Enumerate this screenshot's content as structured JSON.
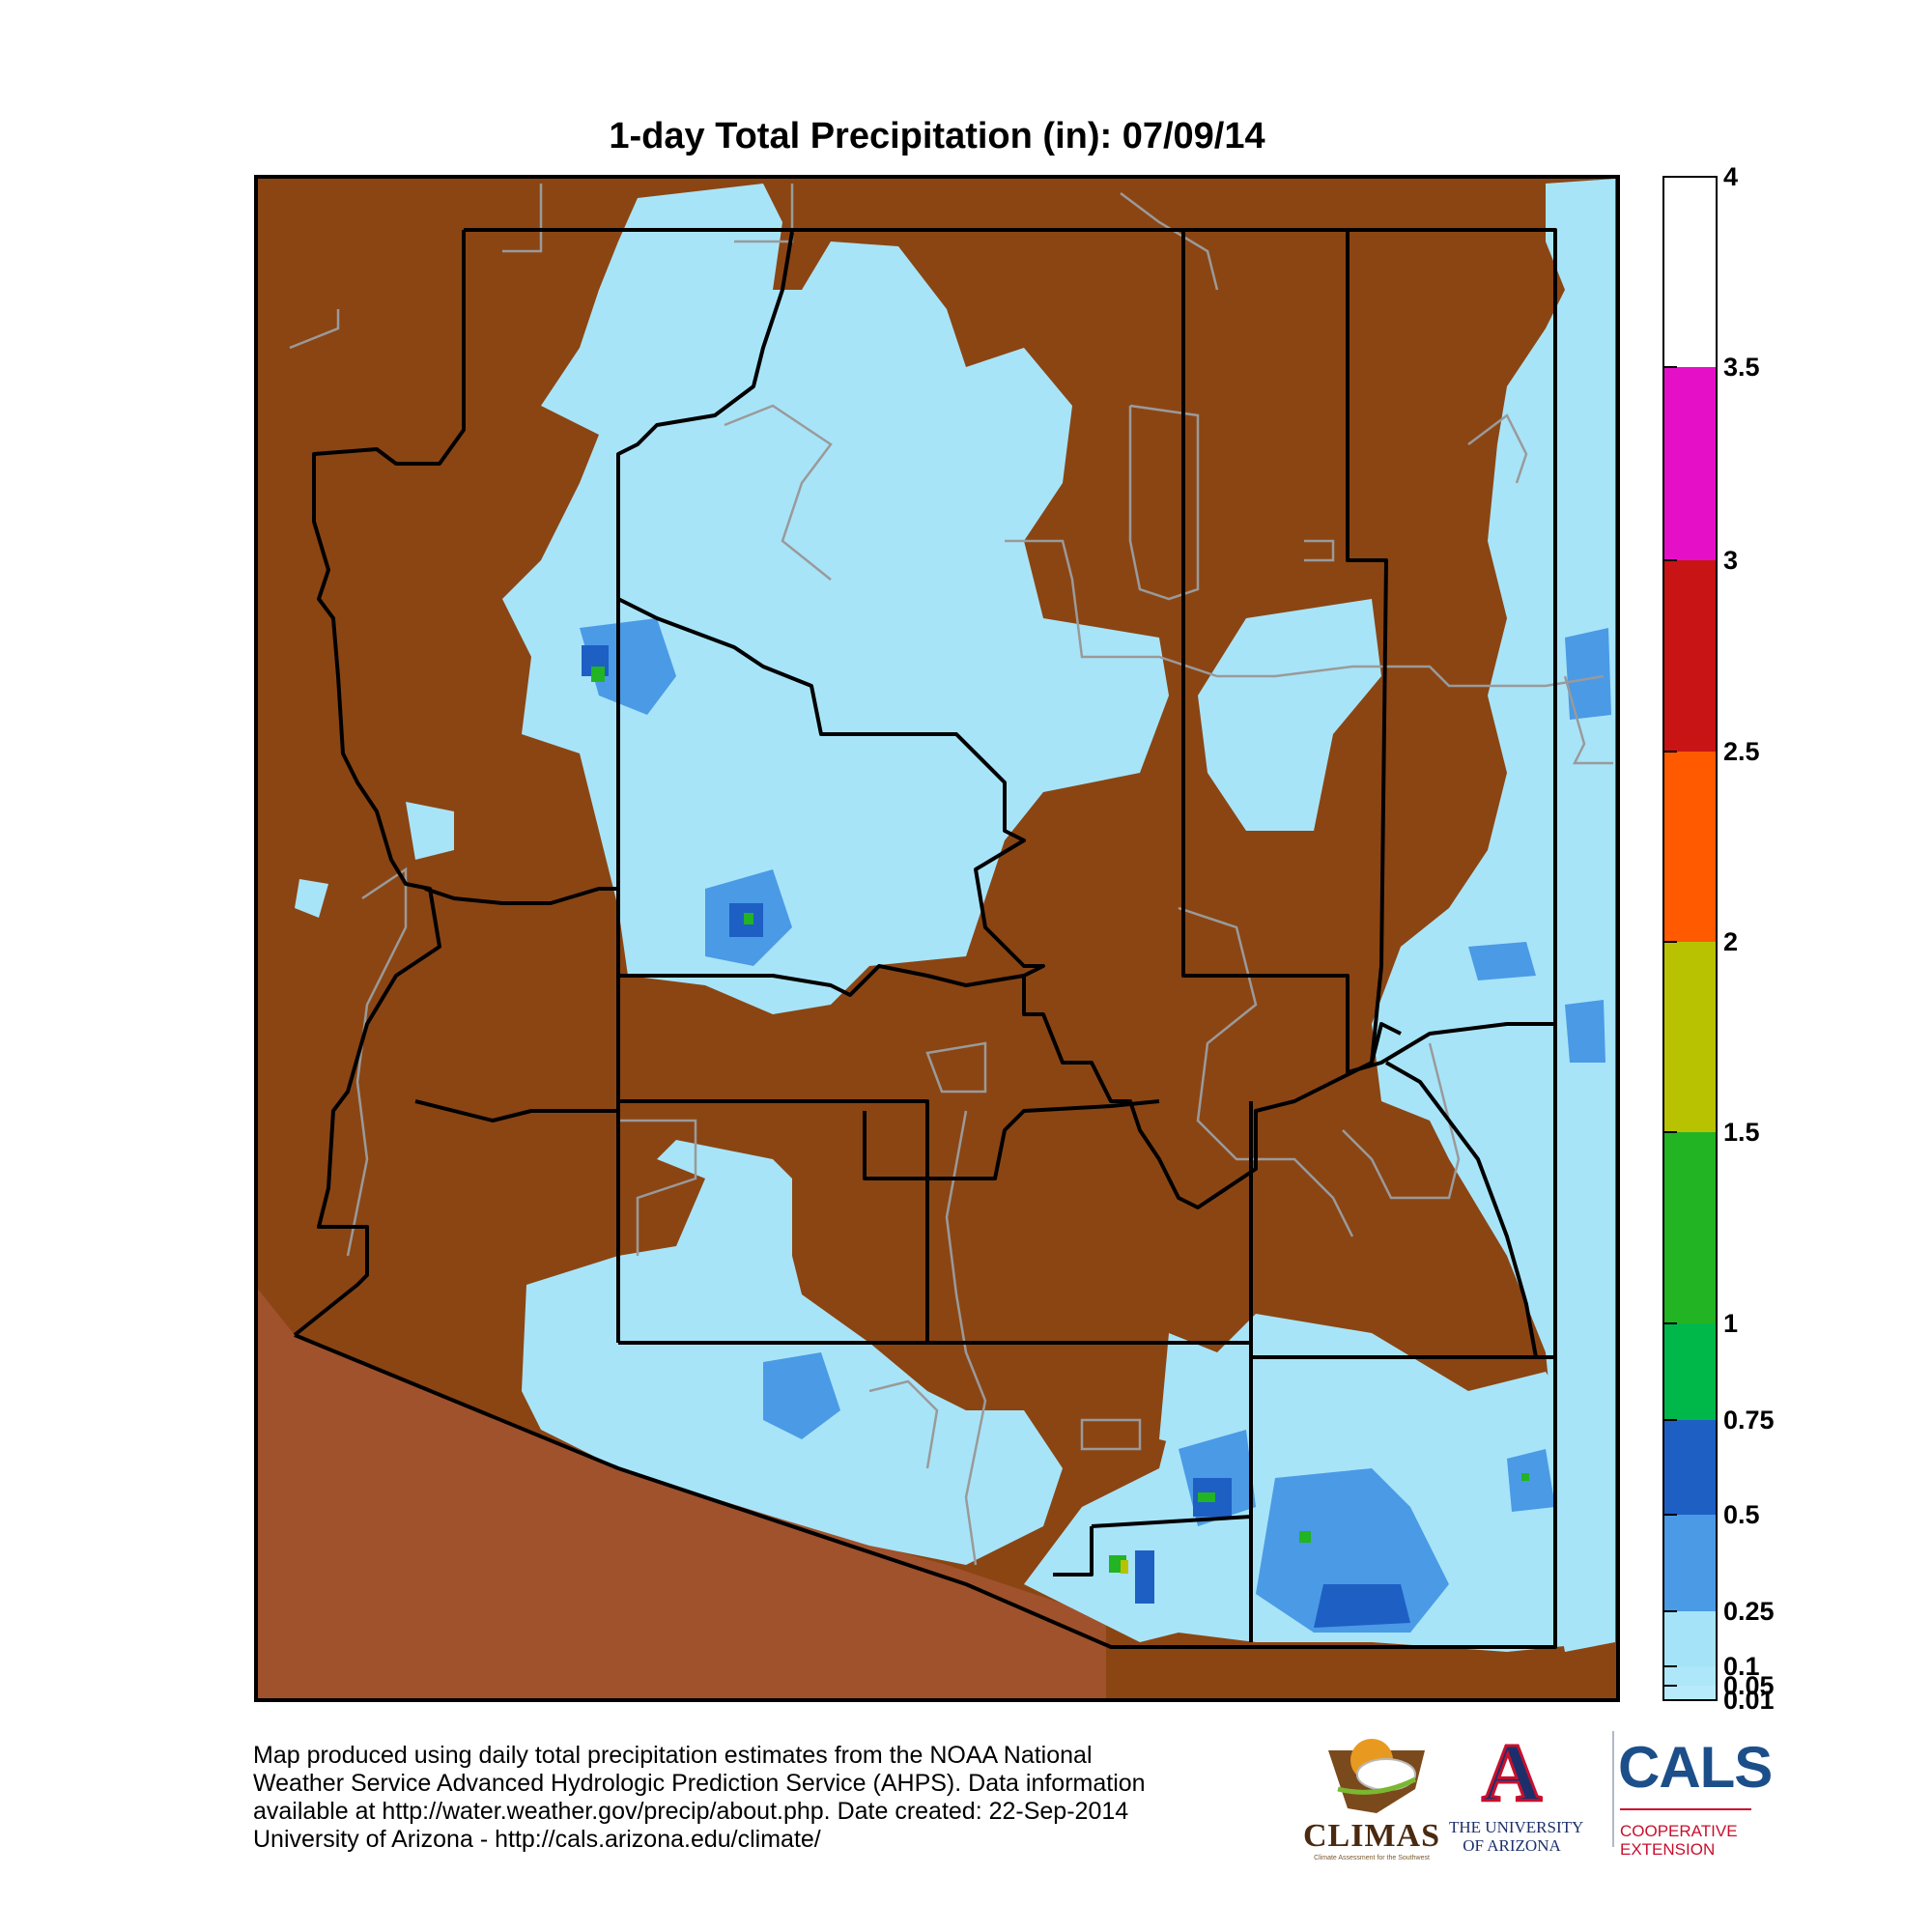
{
  "title": "1-day Total Precipitation (in): 07/09/14",
  "colorbar": {
    "labels": [
      "4",
      "3.5",
      "3",
      "2.5",
      "2",
      "1.5",
      "1",
      "0.75",
      "0.5",
      "0.25",
      "0.1",
      "0.05",
      "0.01"
    ],
    "levels": [
      {
        "from": 0.01,
        "to": 0.05,
        "color": "#b7ebfb"
      },
      {
        "from": 0.05,
        "to": 0.1,
        "color": "#aee6fa"
      },
      {
        "from": 0.1,
        "to": 0.25,
        "color": "#a5e4f8"
      },
      {
        "from": 0.25,
        "to": 0.5,
        "color": "#4a9ae6"
      },
      {
        "from": 0.5,
        "to": 0.75,
        "color": "#1e5fc4"
      },
      {
        "from": 0.75,
        "to": 1,
        "color": "#00b84a"
      },
      {
        "from": 1,
        "to": 1.5,
        "color": "#22b422"
      },
      {
        "from": 1.5,
        "to": 2,
        "color": "#b8c200"
      },
      {
        "from": 2,
        "to": 2.5,
        "color": "#ff5a00"
      },
      {
        "from": 2.5,
        "to": 3,
        "color": "#c81414"
      },
      {
        "from": 3,
        "to": 3.5,
        "color": "#e60fc8"
      },
      {
        "from": 3.5,
        "to": 4,
        "color": "#ffffff"
      }
    ]
  },
  "colors": {
    "no_precip": "#8b4513",
    "outside_region": "#a0522d",
    "light_rain": "#a8e4f8",
    "moderate_rain": "#4a9ae6",
    "heavy_rain": "#1e5fc4",
    "county_border": "#000000",
    "land_boundary": "#9a9a9a"
  },
  "footer": {
    "line1": "Map produced using daily total precipitation estimates from the NOAA National",
    "line2": "Weather Service Advanced Hydrologic Prediction Service (AHPS). Data information",
    "line3": "available at http://water.weather.gov/precip/about.php. Date created: 22-Sep-2014",
    "line4": "University of Arizona - http://cals.arizona.edu/climate/"
  },
  "logos": {
    "climas": "CLIMAS",
    "climas_tagline": "Climate Assessment for the Southwest",
    "ua_line1": "THE UNIVERSITY",
    "ua_line2": "OF ARIZONA",
    "ua_letter": "A",
    "cals": "CALS",
    "cals_line1": "COOPERATIVE",
    "cals_line2": "EXTENSION"
  }
}
